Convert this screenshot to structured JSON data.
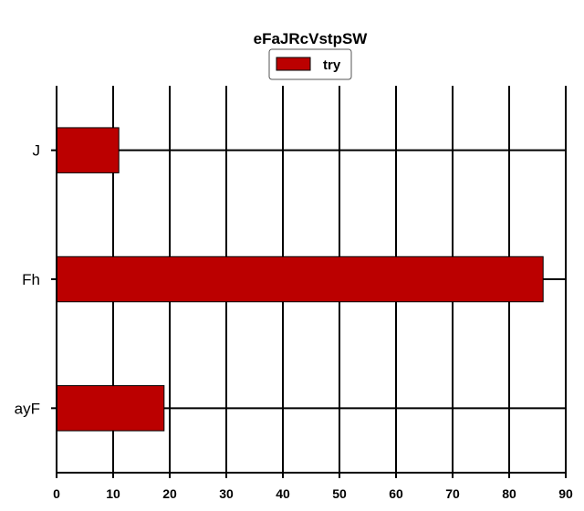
{
  "chart_data": {
    "type": "bar",
    "orientation": "horizontal",
    "title": "eFaJRcVstpSW",
    "xlabel": "",
    "ylabel": "",
    "categories": [
      "J",
      "Fh",
      "ayF"
    ],
    "series": [
      {
        "name": "try",
        "values": [
          11,
          86,
          19
        ],
        "color": "#bb0000"
      }
    ],
    "xlim": [
      0,
      90
    ],
    "xticks": [
      0,
      10,
      20,
      30,
      40,
      50,
      60,
      70,
      80,
      90
    ],
    "grid": true,
    "legend": "top-center"
  }
}
